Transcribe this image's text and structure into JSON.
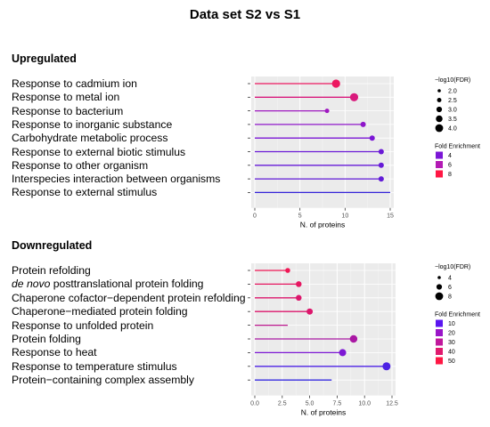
{
  "title": "Data set S2 vs S1",
  "chart_data": [
    {
      "type": "lollipop",
      "section_title": "Upregulated",
      "xlabel": "N. of proteins",
      "xlim": [
        0,
        15
      ],
      "xticks": [
        "0",
        "5",
        "10",
        "15"
      ],
      "grid": true,
      "legend_position": "right",
      "categories": [
        "Response to cadmium ion",
        "Response to metal ion",
        "Response to bacterium",
        "Response to inorganic substance",
        "Carbohydrate metabolic process",
        "Response to external biotic stimulus",
        "Response to other organism",
        "Interspecies interaction between organisms",
        "Response to external stimulus"
      ],
      "values": [
        9,
        11,
        8,
        12,
        13,
        14,
        14,
        14,
        15
      ],
      "neg_log10_fdr": [
        3.5,
        3.5,
        2.2,
        2.5,
        2.5,
        2.5,
        2.5,
        2.5,
        0
      ],
      "fold_enrichment": [
        8.5,
        8.0,
        6.3,
        5.7,
        5.0,
        4.6,
        4.5,
        4.4,
        3.3
      ],
      "size_legend": {
        "title": "−log10(FDR)",
        "labels": [
          "2.0",
          "2.5",
          "3.0",
          "3.5",
          "4.0"
        ]
      },
      "color_legend": {
        "title": "Fold Enrichment",
        "labels": [
          "4",
          "6",
          "8"
        ],
        "colors": [
          "#7b16d6",
          "#b31ab4",
          "#ff1744"
        ]
      }
    },
    {
      "type": "lollipop",
      "section_title": "Downregulated",
      "xlabel": "N. of proteins",
      "xlim": [
        0,
        12.5
      ],
      "xticks": [
        "0.0",
        "2.5",
        "5.0",
        "7.5",
        "10.0",
        "12.5"
      ],
      "grid": true,
      "legend_position": "right",
      "categories": [
        "Protein refolding",
        "de novo posttranslational protein folding",
        "Chaperone cofactor−dependent protein refolding",
        "Chaperone−mediated protein folding",
        "Response to unfolded protein",
        "Protein folding",
        "Response to heat",
        "Response to temperature stimulus",
        "Protein−containing complex assembly"
      ],
      "values": [
        3,
        4,
        4,
        5,
        3,
        9,
        8,
        12,
        7
      ],
      "neg_log10_fdr": [
        3.5,
        4.5,
        4.5,
        5,
        0,
        6.5,
        6,
        7,
        0
      ],
      "fold_enrichment": [
        52,
        50,
        48,
        48,
        42,
        38,
        28,
        16,
        10
      ],
      "size_legend": {
        "title": "−log10(FDR)",
        "labels": [
          "4",
          "6",
          "8"
        ]
      },
      "color_legend": {
        "title": "Fold Enrichment",
        "labels": [
          "10",
          "20",
          "30",
          "40",
          "50"
        ],
        "colors": [
          "#5a16f0",
          "#9a16c8",
          "#c0189c",
          "#e01a6e",
          "#ff1744"
        ]
      }
    }
  ]
}
